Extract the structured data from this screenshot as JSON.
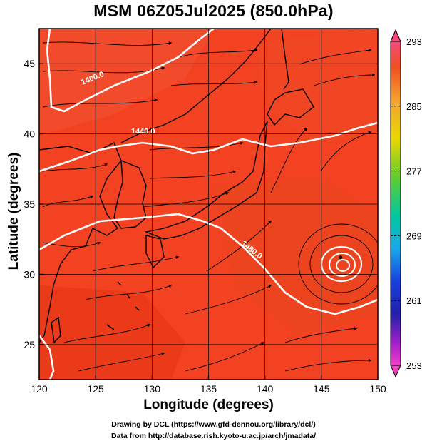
{
  "title": "MSM 06Z05Jul2025 (850.0hPa)",
  "xlabel": "Longitude (degrees)",
  "ylabel": "Latitude  (degrees)",
  "credits": [
    "Drawing by DCL (https://www.gfd-dennou.org/library/dcl/)",
    "Data from http://database.rish.kyoto-u.ac.jp/arch/jmadata/"
  ],
  "map": {
    "lon_range": [
      120,
      150
    ],
    "lat_range": [
      22.5,
      47.5
    ],
    "x_ticks": [
      "120",
      "125",
      "130",
      "135",
      "140",
      "145",
      "150"
    ],
    "y_ticks": [
      "25",
      "30",
      "35",
      "40",
      "45"
    ],
    "grid": true,
    "field": "temperature",
    "field_color": "#f24020",
    "contour_color": "#ffffff",
    "contour_labels": [
      {
        "text": "1400.0",
        "lon": 124.8,
        "lat": 43.8,
        "angle": -22
      },
      {
        "text": "1440.0",
        "lon": 129.2,
        "lat": 40.0,
        "angle": 0
      },
      {
        "text": "1480.0",
        "lon": 138.7,
        "lat": 31.6,
        "angle": 38
      }
    ],
    "typhoon_center": {
      "lon": 146.7,
      "lat": 31.2
    }
  },
  "colorbar": {
    "min": 253,
    "max": 293,
    "labels": [
      "293",
      "285",
      "277",
      "269",
      "261",
      "253"
    ],
    "colors": [
      "#f6487a",
      "#f05020",
      "#f3a030",
      "#e8d800",
      "#60cc30",
      "#00c8a0",
      "#18a8e8",
      "#1840e0",
      "#2020a8",
      "#a020c8",
      "#f040c8"
    ]
  }
}
